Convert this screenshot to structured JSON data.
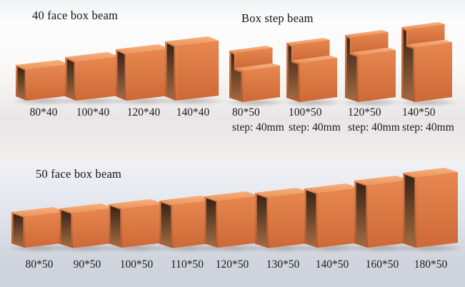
{
  "sections": {
    "top": {
      "title_left": "40 face box beam",
      "title_right": "Box step beam",
      "box_beams": [
        {
          "label": "80*40",
          "height_mm": 80,
          "face_mm": 40
        },
        {
          "label": "100*40",
          "height_mm": 100,
          "face_mm": 40
        },
        {
          "label": "120*40",
          "height_mm": 120,
          "face_mm": 40
        },
        {
          "label": "140*40",
          "height_mm": 140,
          "face_mm": 40
        }
      ],
      "step_beams": [
        {
          "label": "80*50",
          "step_label": "step: 40mm",
          "height_mm": 80,
          "face_mm": 50,
          "step_mm": 40
        },
        {
          "label": "100*50",
          "step_label": "step: 40mm",
          "height_mm": 100,
          "face_mm": 50,
          "step_mm": 40
        },
        {
          "label": "120*50",
          "step_label": "step: 40mm",
          "height_mm": 120,
          "face_mm": 50,
          "step_mm": 40
        },
        {
          "label": "140*50",
          "step_label": "step: 40mm",
          "height_mm": 140,
          "face_mm": 50,
          "step_mm": 40
        }
      ]
    },
    "bottom": {
      "title": "50 face box beam",
      "box_beams": [
        {
          "label": "80*50",
          "height_mm": 80,
          "face_mm": 50
        },
        {
          "label": "90*50",
          "height_mm": 90,
          "face_mm": 50
        },
        {
          "label": "100*50",
          "height_mm": 100,
          "face_mm": 50
        },
        {
          "label": "110*50",
          "height_mm": 110,
          "face_mm": 50
        },
        {
          "label": "120*50",
          "height_mm": 120,
          "face_mm": 50
        },
        {
          "label": "130*50",
          "height_mm": 130,
          "face_mm": 50
        },
        {
          "label": "140*50",
          "height_mm": 140,
          "face_mm": 50
        },
        {
          "label": "160*50",
          "height_mm": 160,
          "face_mm": 50
        },
        {
          "label": "180*50",
          "height_mm": 180,
          "face_mm": 50
        }
      ]
    }
  },
  "colors": {
    "beam_front_light": "#e8874f",
    "beam_front_dark": "#cd6937",
    "beam_top_light": "#f7b182",
    "beam_top_dark": "#ec9459",
    "beam_end_light": "#dd7f4c",
    "beam_end_dark": "#b05a2e",
    "beam_hollow_top": "#38231572",
    "beam_hollow_top_solid": "#382315",
    "beam_hollow_bottom": "#a06a42",
    "text": "#1b1b1b"
  }
}
